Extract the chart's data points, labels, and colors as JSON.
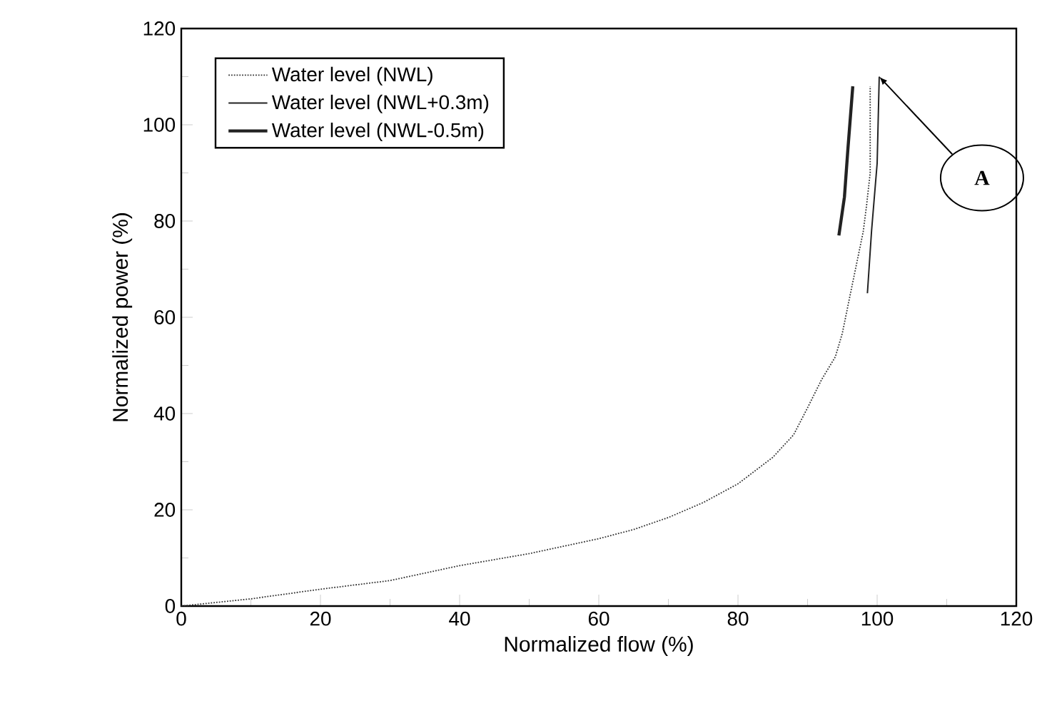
{
  "chart_data": {
    "type": "line",
    "xlabel": "Normalized  flow  (%)",
    "ylabel": "Normalized power (%)",
    "xlim": [
      0,
      120
    ],
    "ylim": [
      0,
      120
    ],
    "xticks": [
      0,
      20,
      40,
      60,
      80,
      100,
      120
    ],
    "yticks": [
      0,
      20,
      40,
      60,
      80,
      100,
      120
    ],
    "legend": "top left",
    "grid": false,
    "series": [
      {
        "name": "Water level (NWL)",
        "color": "#333333",
        "line_style": "dotted",
        "x": [
          0,
          10,
          20,
          30,
          40,
          50,
          60,
          65,
          70,
          75,
          80,
          85,
          88,
          90,
          92,
          94,
          95,
          96,
          97,
          98,
          98.5,
          99,
          99
        ],
        "values": [
          0,
          1.5,
          3.5,
          5.3,
          8.4,
          10.9,
          14,
          15.9,
          18.4,
          21.5,
          25.4,
          30.9,
          35.6,
          41.2,
          47,
          51.8,
          56.7,
          63.8,
          70.8,
          77.8,
          83.5,
          90,
          108
        ]
      },
      {
        "name": "Water level (NWL+0.3m)",
        "color": "#222222",
        "line_style": "solid",
        "x": [
          98.6,
          99.2,
          99.6,
          100,
          100.3
        ],
        "values": [
          65,
          78,
          85,
          92,
          110
        ]
      },
      {
        "name": "Water level (NWL-0.5m)",
        "color": "#222222",
        "line_style": "solid",
        "x": [
          94.5,
          95.3,
          95.8,
          96.5
        ],
        "values": [
          77,
          85,
          95,
          108
        ]
      }
    ],
    "annotations": [
      "A"
    ]
  }
}
